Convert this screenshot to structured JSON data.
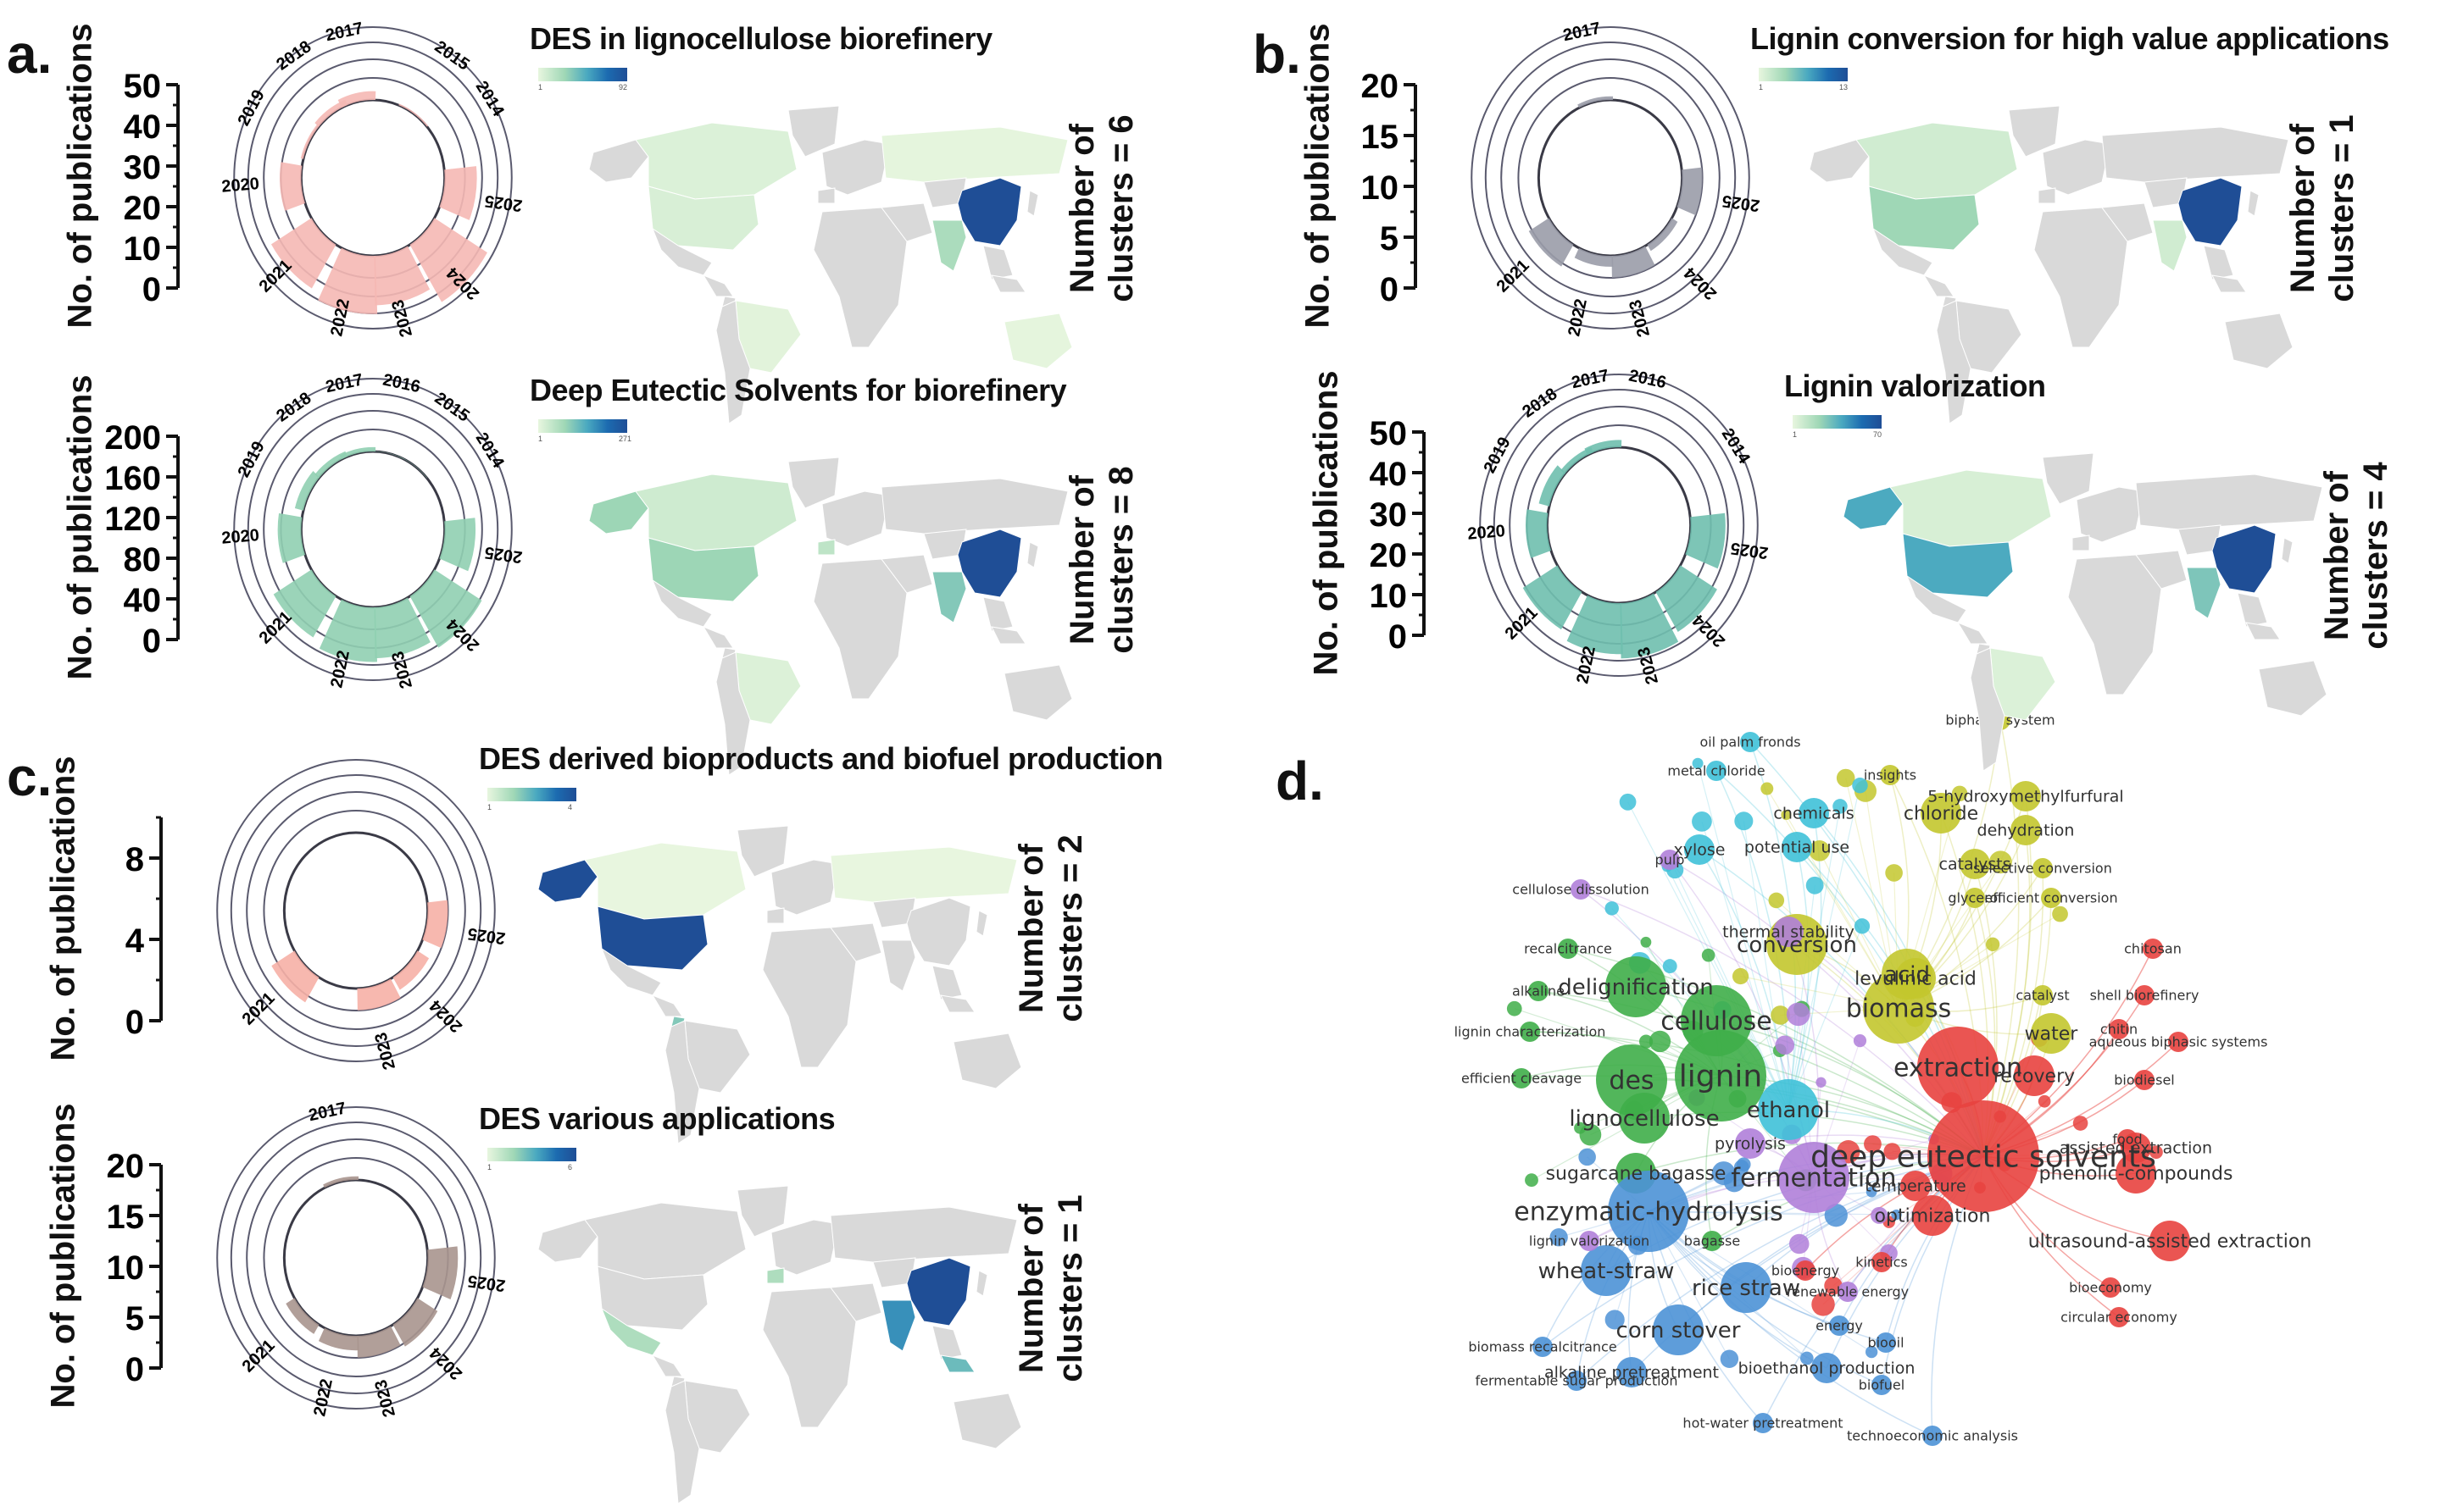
{
  "figure": {
    "panel_labels": [
      "a.",
      "b.",
      "c.",
      "d."
    ],
    "y_axis_label": "No. of publications"
  },
  "chart_data": [
    {
      "id": "a_top",
      "type": "radial-bar",
      "panel": "a",
      "title": "DES in lignocellulose biorefinery",
      "ylabel": "No. of publications",
      "ylim": [
        0,
        50
      ],
      "yticks": [
        0,
        10,
        20,
        30,
        40,
        50
      ],
      "color": "#f5b8b4",
      "categories": [
        "2014",
        "2015",
        "2017",
        "2018",
        "2019",
        "2020",
        "2021",
        "2022",
        "2023",
        "2024",
        "2025"
      ],
      "values": [
        0,
        1,
        6,
        4,
        2,
        16,
        35,
        40,
        34,
        46,
        24
      ],
      "colorbar": {
        "min": "1",
        "max": "92"
      },
      "clusters_label": "Number of clusters = 6",
      "map": {
        "China": 92,
        "India": 20,
        "USA": 6,
        "Canada": 5,
        "Brazil": 3,
        "Russia": 2,
        "Australia": 2
      }
    },
    {
      "id": "a_bottom",
      "type": "radial-bar",
      "panel": "a",
      "title": "Deep Eutectic Solvents for biorefinery",
      "ylabel": "No. of publications",
      "ylim": [
        0,
        200
      ],
      "yticks": [
        0,
        40,
        80,
        120,
        160,
        200
      ],
      "color": "#90cfb1",
      "categories": [
        "2014",
        "2015",
        "2016",
        "2017",
        "2018",
        "2019",
        "2020",
        "2021",
        "2022",
        "2023",
        "2024",
        "2025"
      ],
      "values": [
        0,
        1,
        1,
        12,
        16,
        26,
        70,
        132,
        150,
        140,
        165,
        92
      ],
      "colorbar": {
        "min": "1",
        "max": "271"
      },
      "clusters_label": "Number of clusters = 8",
      "map": {
        "China": 271,
        "India": 90,
        "USA": 70,
        "Canada": 25,
        "Alaska": 70,
        "Brazil": 12,
        "Spain": 40
      }
    },
    {
      "id": "b_top",
      "type": "radial-bar",
      "panel": "b",
      "title": "Lignin conversion for high value applications",
      "ylabel": "No. of publications",
      "ylim": [
        0,
        20
      ],
      "yticks": [
        0,
        5,
        10,
        15,
        20
      ],
      "color": "#9a9ca8",
      "categories": [
        "2017",
        "2021",
        "2022",
        "2023",
        "2024",
        "2025"
      ],
      "values": [
        1,
        7,
        3,
        6,
        2,
        6
      ],
      "colorbar": {
        "min": "1",
        "max": "13"
      },
      "clusters_label": "Number of clusters = 1",
      "map": {
        "China": 13,
        "USA": 4,
        "Canada": 2,
        "India": 2
      }
    },
    {
      "id": "b_bottom",
      "type": "radial-bar",
      "panel": "b",
      "title": "Lignin valorization",
      "ylabel": "No. of publications",
      "ylim": [
        0,
        50
      ],
      "yticks": [
        0,
        10,
        20,
        30,
        40,
        50
      ],
      "color": "#6fbfae",
      "categories": [
        "2014",
        "2016",
        "2017",
        "2018",
        "2019",
        "2020",
        "2021",
        "2022",
        "2023",
        "2024",
        "2025"
      ],
      "values": [
        0,
        0,
        5,
        4,
        8,
        16,
        30,
        35,
        38,
        32,
        26
      ],
      "colorbar": {
        "min": "1",
        "max": "70"
      },
      "clusters_label": "Number of clusters = 4",
      "map": {
        "China": 70,
        "USA": 35,
        "Alaska": 35,
        "India": 25,
        "Canada": 5,
        "Brazil": 4
      }
    },
    {
      "id": "c_top",
      "type": "radial-bar",
      "panel": "c",
      "title": "DES derived bioproducts and biofuel production",
      "ylabel": "No. of publications",
      "ylim": [
        0,
        10
      ],
      "yticks": [
        0,
        4,
        8
      ],
      "color": "#f6b0a6",
      "categories": [
        "2021",
        "2023",
        "2024",
        "2025"
      ],
      "values": [
        4,
        3,
        2,
        3
      ],
      "colorbar": {
        "min": "1",
        "max": "4"
      },
      "clusters_label": "Number of clusters = 2",
      "map": {
        "USA": 4,
        "Alaska": 4,
        "Ecuador": 2,
        "Russia": 1,
        "Canada": 1
      }
    },
    {
      "id": "c_bottom",
      "type": "radial-bar",
      "panel": "c",
      "title": "DES various applications",
      "ylabel": "No. of publications",
      "ylim": [
        0,
        20
      ],
      "yticks": [
        0,
        5,
        10,
        15,
        20
      ],
      "color": "#a8958e",
      "categories": [
        "2017",
        "2021",
        "2022",
        "2023",
        "2024",
        "2025"
      ],
      "values": [
        1,
        3,
        4,
        6,
        7,
        9
      ],
      "colorbar": {
        "min": "1",
        "max": "6"
      },
      "clusters_label": "Number of clusters = 1",
      "map": {
        "China": 6,
        "India": 4,
        "Mexico": 2,
        "Spain": 2,
        "Malaysia": 3
      }
    },
    {
      "id": "d_network",
      "type": "network",
      "panel": "d",
      "clusters": {
        "red": "#e8433f",
        "green": "#3fae49",
        "blue": "#4d92d6",
        "yellow": "#c3c72e",
        "purple": "#b07fd9",
        "cyan": "#3fc1d8"
      },
      "nodes": [
        {
          "label": "deep eutectic solvents",
          "cluster": "red",
          "weight": 10
        },
        {
          "label": "extraction",
          "cluster": "red",
          "weight": 7
        },
        {
          "label": "recovery",
          "cluster": "red",
          "weight": 3
        },
        {
          "label": "phenolic-compounds",
          "cluster": "red",
          "weight": 3
        },
        {
          "label": "ultrasound-assisted extraction",
          "cluster": "red",
          "weight": 3
        },
        {
          "label": "assisted extraction",
          "cluster": "red",
          "weight": 2
        },
        {
          "label": "optimization",
          "cluster": "red",
          "weight": 3
        },
        {
          "label": "temperature",
          "cluster": "red",
          "weight": 2
        },
        {
          "label": "kinetics",
          "cluster": "red",
          "weight": 1
        },
        {
          "label": "bioeconomy",
          "cluster": "red",
          "weight": 1
        },
        {
          "label": "circular economy",
          "cluster": "red",
          "weight": 1
        },
        {
          "label": "food",
          "cluster": "red",
          "weight": 1
        },
        {
          "label": "biodiesel",
          "cluster": "red",
          "weight": 1
        },
        {
          "label": "chitin",
          "cluster": "red",
          "weight": 1
        },
        {
          "label": "chitosan",
          "cluster": "red",
          "weight": 1
        },
        {
          "label": "shell biorefinery",
          "cluster": "red",
          "weight": 1
        },
        {
          "label": "aqueous biphasic systems",
          "cluster": "red",
          "weight": 1
        },
        {
          "label": "bioenergy",
          "cluster": "red",
          "weight": 1
        },
        {
          "label": "lignin",
          "cluster": "green",
          "weight": 8
        },
        {
          "label": "des",
          "cluster": "green",
          "weight": 6
        },
        {
          "label": "cellulose",
          "cluster": "green",
          "weight": 6
        },
        {
          "label": "delignification",
          "cluster": "green",
          "weight": 5
        },
        {
          "label": "lignocellulose",
          "cluster": "green",
          "weight": 4
        },
        {
          "label": "sugarcane bagasse",
          "cluster": "green",
          "weight": 3
        },
        {
          "label": "recalcitrance",
          "cluster": "green",
          "weight": 1
        },
        {
          "label": "alkaline",
          "cluster": "green",
          "weight": 1
        },
        {
          "label": "lignin characterization",
          "cluster": "green",
          "weight": 1
        },
        {
          "label": "efficient cleavage",
          "cluster": "green",
          "weight": 1
        },
        {
          "label": "bagasse",
          "cluster": "green",
          "weight": 1
        },
        {
          "label": "enzymatic-hydrolysis",
          "cluster": "blue",
          "weight": 7
        },
        {
          "label": "wheat-straw",
          "cluster": "blue",
          "weight": 4
        },
        {
          "label": "rice straw",
          "cluster": "blue",
          "weight": 4
        },
        {
          "label": "corn stover",
          "cluster": "blue",
          "weight": 4
        },
        {
          "label": "bioethanol production",
          "cluster": "blue",
          "weight": 2
        },
        {
          "label": "alkaline pretreatment",
          "cluster": "blue",
          "weight": 2
        },
        {
          "label": "hot-water pretreatment",
          "cluster": "blue",
          "weight": 1
        },
        {
          "label": "fermentable sugar production",
          "cluster": "blue",
          "weight": 1
        },
        {
          "label": "biomass recalcitrance",
          "cluster": "blue",
          "weight": 1
        },
        {
          "label": "biofuel",
          "cluster": "blue",
          "weight": 1
        },
        {
          "label": "biooil",
          "cluster": "blue",
          "weight": 1
        },
        {
          "label": "energy",
          "cluster": "blue",
          "weight": 1
        },
        {
          "label": "technoeconomic analysis",
          "cluster": "blue",
          "weight": 1
        },
        {
          "label": "biomass",
          "cluster": "yellow",
          "weight": 6
        },
        {
          "label": "conversion",
          "cluster": "yellow",
          "weight": 5
        },
        {
          "label": "acid",
          "cluster": "yellow",
          "weight": 4
        },
        {
          "label": "water",
          "cluster": "yellow",
          "weight": 3
        },
        {
          "label": "levulinic acid",
          "cluster": "yellow",
          "weight": 3
        },
        {
          "label": "chloride",
          "cluster": "yellow",
          "weight": 3
        },
        {
          "label": "5-hydroxymethylfurfural",
          "cluster": "yellow",
          "weight": 2
        },
        {
          "label": "dehydration",
          "cluster": "yellow",
          "weight": 2
        },
        {
          "label": "catalysts",
          "cluster": "yellow",
          "weight": 2
        },
        {
          "label": "selective conversion",
          "cluster": "yellow",
          "weight": 1
        },
        {
          "label": "efficient conversion",
          "cluster": "yellow",
          "weight": 1
        },
        {
          "label": "biphasic system",
          "cluster": "yellow",
          "weight": 1
        },
        {
          "label": "insights",
          "cluster": "yellow",
          "weight": 1
        },
        {
          "label": "catalyst",
          "cluster": "yellow",
          "weight": 1
        },
        {
          "label": "glycerol",
          "cluster": "yellow",
          "weight": 1
        },
        {
          "label": "fermentation",
          "cluster": "purple",
          "weight": 6
        },
        {
          "label": "pyrolysis",
          "cluster": "purple",
          "weight": 2
        },
        {
          "label": "thermal stability",
          "cluster": "purple",
          "weight": 2
        },
        {
          "label": "cellulose dissolution",
          "cluster": "purple",
          "weight": 1
        },
        {
          "label": "pulp",
          "cluster": "purple",
          "weight": 1
        },
        {
          "label": "renewable energy",
          "cluster": "purple",
          "weight": 1
        },
        {
          "label": "lignin valorization",
          "cluster": "purple",
          "weight": 1
        },
        {
          "label": "ethanol",
          "cluster": "cyan",
          "weight": 5
        },
        {
          "label": "potential use",
          "cluster": "cyan",
          "weight": 2
        },
        {
          "label": "xylose",
          "cluster": "cyan",
          "weight": 2
        },
        {
          "label": "chemicals",
          "cluster": "cyan",
          "weight": 2
        },
        {
          "label": "metal chloride",
          "cluster": "cyan",
          "weight": 1
        },
        {
          "label": "oil palm fronds",
          "cluster": "cyan",
          "weight": 1
        }
      ]
    }
  ]
}
